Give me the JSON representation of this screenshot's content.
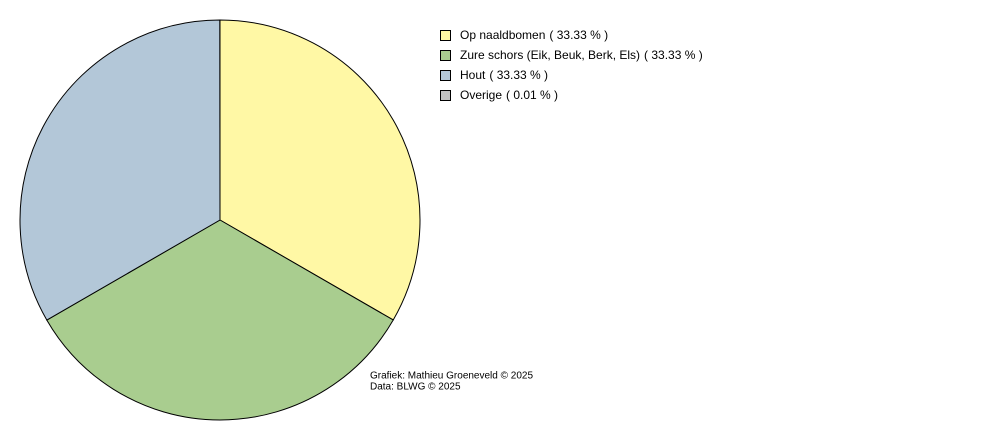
{
  "chart_data": {
    "type": "pie",
    "categories": [
      "Op naaldbomen",
      "Zure schors (Eik, Beuk, Berk, Els)",
      "Hout",
      "Overige"
    ],
    "values": [
      33.33,
      33.33,
      33.33,
      0.01
    ],
    "value_labels": [
      "( 33.33 % )",
      "( 33.33 % )",
      "( 33.33 % )",
      "( 0.01 % )"
    ],
    "colors": [
      "#fff8a5",
      "#a9cd8f",
      "#b3c7d8",
      "#c0c0c0"
    ],
    "credits": [
      "Grafiek: Mathieu Groeneveld © 2025",
      "Data: BLWG © 2025"
    ]
  }
}
